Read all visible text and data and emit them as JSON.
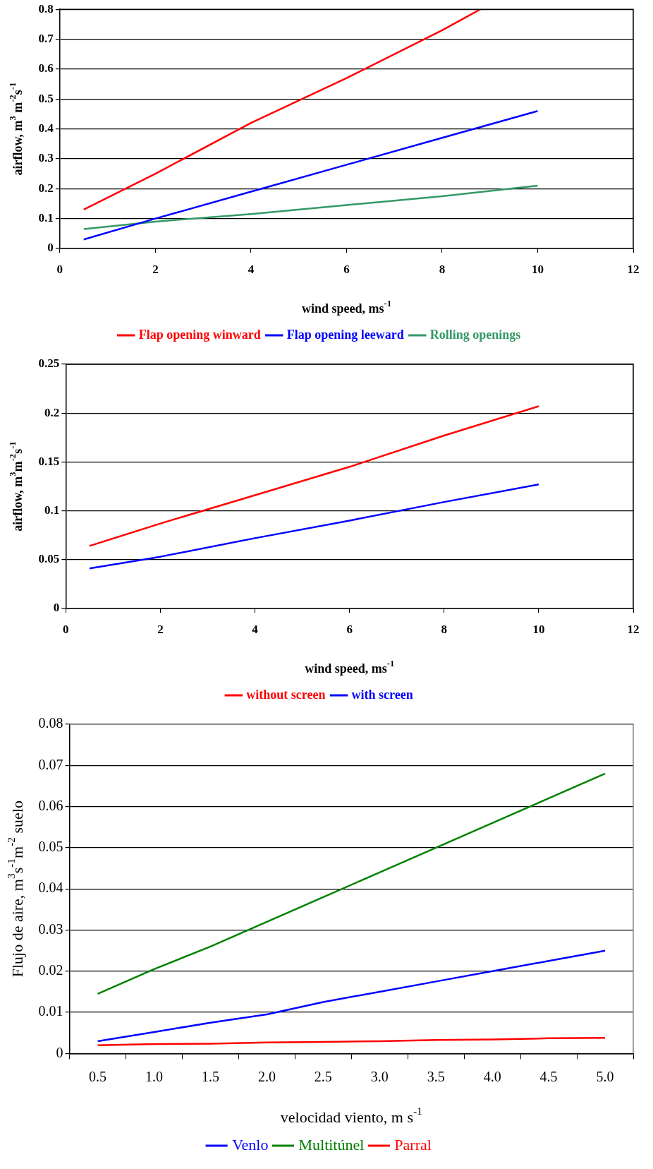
{
  "chart_data": [
    {
      "type": "line",
      "xlabel": "wind speed, ms$^{-1}$",
      "ylabel": "airflow, m$^{3}$ m$^{-2}$s$^{-1}$",
      "xlim": [
        0,
        12
      ],
      "xticks": [
        0,
        2,
        4,
        6,
        8,
        10,
        12
      ],
      "ylim": [
        0,
        0.8
      ],
      "yticks": [
        0,
        0.1,
        0.2,
        0.3,
        0.4,
        0.5,
        0.6,
        0.7,
        0.8
      ],
      "grid": "y",
      "legend": "bottom",
      "marker": "none",
      "line_style": "solid",
      "series": [
        {
          "name": "Flap opening winward",
          "color": "#ff0000",
          "x": [
            0.5,
            2,
            4,
            6,
            8,
            8.8
          ],
          "values": [
            0.13,
            0.25,
            0.42,
            0.57,
            0.73,
            0.8
          ]
        },
        {
          "name": "Flap opening leeward",
          "color": "#0000ff",
          "x": [
            0.5,
            2,
            4,
            6,
            8,
            10
          ],
          "values": [
            0.03,
            0.1,
            0.19,
            0.28,
            0.37,
            0.46
          ]
        },
        {
          "name": "Rolling openings",
          "color": "#339966",
          "x": [
            0.5,
            2,
            4,
            6,
            8,
            10
          ],
          "values": [
            0.065,
            0.09,
            0.115,
            0.145,
            0.175,
            0.21
          ]
        }
      ]
    },
    {
      "type": "line",
      "xlabel": "wind speed, ms$^{-1}$",
      "ylabel": "airflow, m$^{3}$m$^{-2}$s$^{-1}$",
      "xlim": [
        0,
        12
      ],
      "xticks": [
        0,
        2,
        4,
        6,
        8,
        10,
        12
      ],
      "ylim": [
        0,
        0.25
      ],
      "yticks": [
        0,
        0.05,
        0.1,
        0.15,
        0.2,
        0.25
      ],
      "grid": "y",
      "legend": "bottom",
      "marker": "none",
      "line_style": "solid",
      "series": [
        {
          "name": "without screen",
          "color": "#ff0000",
          "x": [
            0.5,
            2,
            4,
            6,
            8,
            10
          ],
          "values": [
            0.064,
            0.087,
            0.116,
            0.145,
            0.177,
            0.207
          ]
        },
        {
          "name": "with screen",
          "color": "#0000ff",
          "x": [
            0.5,
            2,
            4,
            6,
            8,
            10
          ],
          "values": [
            0.041,
            0.053,
            0.072,
            0.09,
            0.109,
            0.127
          ]
        }
      ]
    },
    {
      "type": "line",
      "xlabel": "velocidad viento, m s$^{-1}$",
      "ylabel": "Flujo de aire, m$^{3}$s$^{-1}$m$^{-2}$ suelo",
      "categories": [
        "0.5",
        "1.0",
        "1.5",
        "2.0",
        "2.5",
        "3.0",
        "3.5",
        "4.0",
        "4.5",
        "5.0"
      ],
      "ylim": [
        0,
        0.08
      ],
      "yticks": [
        0,
        0.01,
        0.02,
        0.03,
        0.04,
        0.05,
        0.06,
        0.07,
        0.08
      ],
      "grid": "y",
      "legend": "bottom",
      "marker": "none",
      "line_style": "solid",
      "series": [
        {
          "name": "Venlo",
          "color": "#0000ff",
          "values": [
            0.003,
            0.0052,
            0.0075,
            0.0095,
            0.0125,
            0.015,
            0.0175,
            0.02,
            0.0225,
            0.025
          ]
        },
        {
          "name": "Multitúnel",
          "color": "#008000",
          "values": [
            0.0145,
            0.0205,
            0.026,
            0.032,
            0.038,
            0.044,
            0.05,
            0.056,
            0.062,
            0.068
          ]
        },
        {
          "name": "Parral",
          "color": "#ff0000",
          "values": [
            0.002,
            0.0023,
            0.0024,
            0.0027,
            0.0028,
            0.003,
            0.0033,
            0.0034,
            0.0037,
            0.0038
          ]
        }
      ]
    }
  ]
}
